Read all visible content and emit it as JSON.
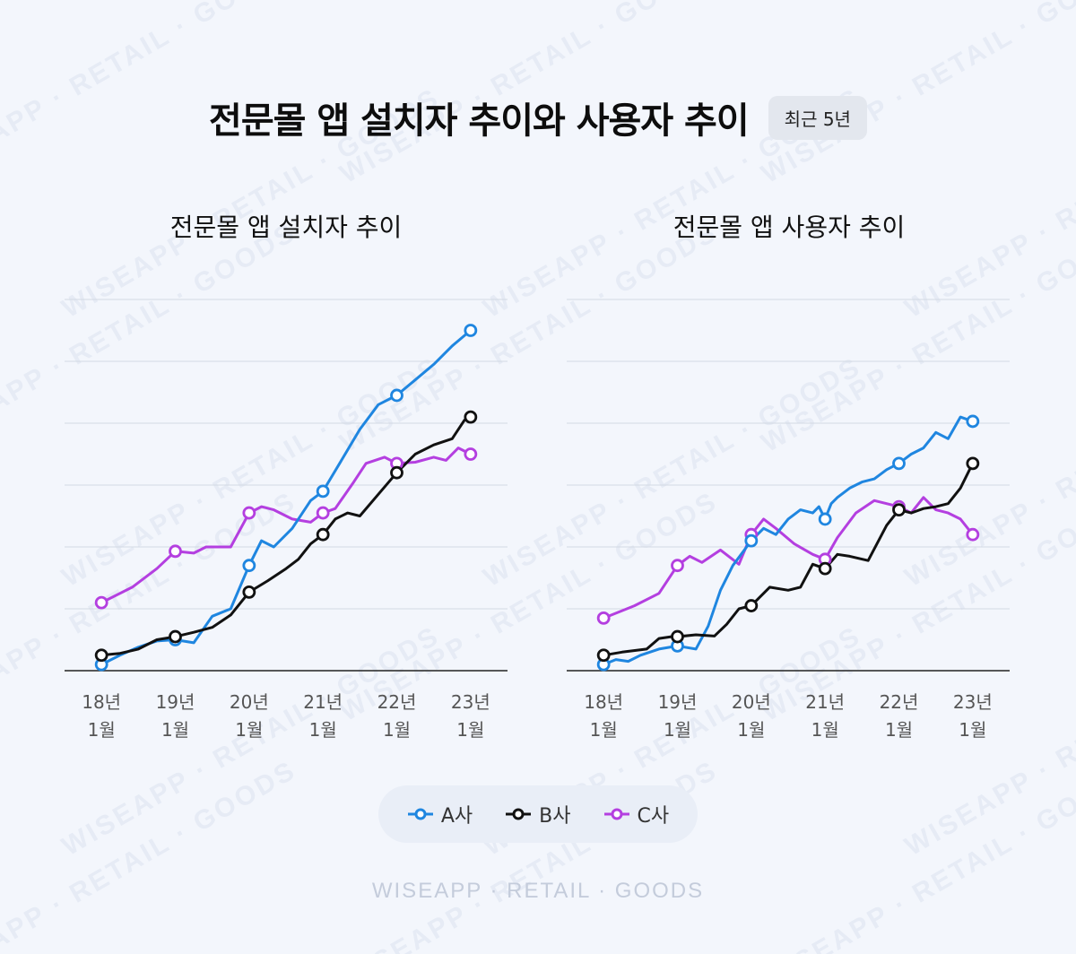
{
  "title": "전문몰 앱 설치자 추이와 사용자 추이",
  "period_badge": "최근 5년",
  "watermark_text": "WISEAPP · RETAIL · GOODS",
  "footer_brand": "WISEAPP · RETAIL · GOODS",
  "colors": {
    "A": "#1f86e0",
    "B": "#111111",
    "C": "#b43fe0",
    "grid": "#d3d9e3",
    "axis": "#222222"
  },
  "legend": [
    {
      "key": "A",
      "label": "A사"
    },
    {
      "key": "B",
      "label": "B사"
    },
    {
      "key": "C",
      "label": "C사"
    }
  ],
  "chart_data": [
    {
      "type": "line",
      "title": "전문몰 앱 설치자 추이",
      "x_ticks": [
        {
          "x": 0,
          "line1": "18년",
          "line2": "1월"
        },
        {
          "x": 12,
          "line1": "19년",
          "line2": "1월"
        },
        {
          "x": 24,
          "line1": "20년",
          "line2": "1월"
        },
        {
          "x": 36,
          "line1": "21년",
          "line2": "1월"
        },
        {
          "x": 48,
          "line1": "22년",
          "line2": "1월"
        },
        {
          "x": 60,
          "line1": "23년",
          "line2": "1월"
        }
      ],
      "xlim": [
        -6,
        66
      ],
      "ylim": [
        0,
        6
      ],
      "grid": true,
      "y_gridlines": 6,
      "series": [
        {
          "name": "A사",
          "key": "A",
          "x": [
            0,
            3,
            6,
            9,
            12,
            15,
            18,
            21,
            24,
            26,
            28,
            31,
            34,
            36,
            39,
            42,
            45,
            48,
            51,
            54,
            57,
            60
          ],
          "values": [
            0.1,
            0.25,
            0.38,
            0.48,
            0.5,
            0.45,
            0.88,
            1.0,
            1.7,
            2.1,
            2.0,
            2.3,
            2.75,
            2.9,
            3.4,
            3.9,
            4.3,
            4.45,
            4.7,
            4.95,
            5.25,
            5.5
          ],
          "markers": [
            0,
            12,
            24,
            36,
            48,
            60
          ]
        },
        {
          "name": "B사",
          "key": "B",
          "x": [
            0,
            3,
            6,
            9,
            12,
            15,
            18,
            21,
            24,
            27,
            30,
            32,
            34,
            36,
            38,
            40,
            42,
            45,
            48,
            51,
            54,
            57,
            59,
            60
          ],
          "values": [
            0.25,
            0.28,
            0.35,
            0.5,
            0.55,
            0.62,
            0.7,
            0.9,
            1.27,
            1.45,
            1.65,
            1.8,
            2.05,
            2.2,
            2.45,
            2.55,
            2.5,
            2.85,
            3.2,
            3.5,
            3.65,
            3.75,
            4.05,
            4.1
          ],
          "markers": [
            0,
            12,
            24,
            36,
            48,
            60
          ]
        },
        {
          "name": "C사",
          "key": "C",
          "x": [
            0,
            5,
            9,
            12,
            15,
            17,
            21,
            24,
            26,
            28,
            31,
            34,
            36,
            38,
            41,
            43,
            46,
            48,
            51,
            54,
            56,
            58,
            60
          ],
          "values": [
            1.1,
            1.35,
            1.65,
            1.93,
            1.9,
            2.0,
            2.0,
            2.55,
            2.65,
            2.6,
            2.45,
            2.4,
            2.55,
            2.62,
            3.05,
            3.35,
            3.45,
            3.35,
            3.37,
            3.45,
            3.4,
            3.6,
            3.5
          ],
          "markers": [
            0,
            12,
            24,
            36,
            48,
            60
          ]
        }
      ]
    },
    {
      "type": "line",
      "title": "전문몰 앱 사용자 추이",
      "x_ticks": [
        {
          "x": 0,
          "line1": "18년",
          "line2": "1월"
        },
        {
          "x": 12,
          "line1": "19년",
          "line2": "1월"
        },
        {
          "x": 24,
          "line1": "20년",
          "line2": "1월"
        },
        {
          "x": 36,
          "line1": "21년",
          "line2": "1월"
        },
        {
          "x": 48,
          "line1": "22년",
          "line2": "1월"
        },
        {
          "x": 60,
          "line1": "23년",
          "line2": "1월"
        }
      ],
      "xlim": [
        -6,
        66
      ],
      "ylim": [
        0,
        6
      ],
      "grid": true,
      "y_gridlines": 6,
      "series": [
        {
          "name": "A사",
          "key": "A",
          "x": [
            0,
            2,
            4,
            6,
            9,
            12,
            15,
            17,
            19,
            21,
            24,
            26,
            28,
            30,
            32,
            34,
            35,
            36,
            37,
            38,
            40,
            42,
            44,
            46,
            48,
            50,
            52,
            54,
            56,
            58,
            60
          ],
          "values": [
            0.1,
            0.18,
            0.15,
            0.25,
            0.35,
            0.4,
            0.35,
            0.72,
            1.3,
            1.7,
            2.1,
            2.3,
            2.2,
            2.45,
            2.6,
            2.55,
            2.65,
            2.45,
            2.7,
            2.8,
            2.95,
            3.05,
            3.1,
            3.25,
            3.35,
            3.5,
            3.6,
            3.85,
            3.75,
            4.1,
            4.03
          ],
          "markers": [
            0,
            12,
            24,
            36,
            48,
            60
          ]
        },
        {
          "name": "B사",
          "key": "B",
          "x": [
            0,
            3,
            7,
            9,
            11,
            12,
            15,
            18,
            20,
            22,
            24,
            27,
            30,
            32,
            34,
            36,
            38,
            40,
            43,
            46,
            48,
            50,
            52,
            54,
            56,
            58,
            60
          ],
          "values": [
            0.25,
            0.3,
            0.35,
            0.52,
            0.55,
            0.55,
            0.58,
            0.56,
            0.75,
            1.0,
            1.05,
            1.35,
            1.3,
            1.35,
            1.72,
            1.65,
            1.88,
            1.85,
            1.78,
            2.35,
            2.6,
            2.55,
            2.62,
            2.65,
            2.7,
            2.95,
            3.35
          ],
          "markers": [
            0,
            12,
            24,
            36,
            48,
            60
          ]
        },
        {
          "name": "C사",
          "key": "C",
          "x": [
            0,
            5,
            9,
            12,
            14,
            16,
            19,
            22,
            24,
            26,
            28,
            31,
            34,
            36,
            38,
            41,
            44,
            46,
            48,
            50,
            52,
            54,
            56,
            58,
            60
          ],
          "values": [
            0.85,
            1.05,
            1.25,
            1.7,
            1.85,
            1.75,
            1.95,
            1.72,
            2.2,
            2.45,
            2.3,
            2.05,
            1.88,
            1.8,
            2.15,
            2.55,
            2.75,
            2.7,
            2.65,
            2.55,
            2.8,
            2.6,
            2.55,
            2.45,
            2.2
          ],
          "markers": [
            0,
            12,
            24,
            36,
            48,
            60
          ]
        }
      ]
    }
  ]
}
